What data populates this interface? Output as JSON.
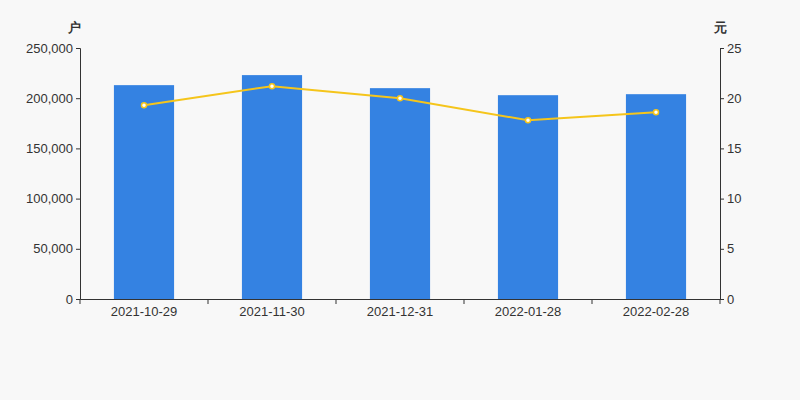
{
  "chart_data": {
    "type": "bar",
    "ylabel": "户",
    "y2label": "元",
    "categories": [
      "2021-10-29",
      "2021-11-30",
      "2021-12-31",
      "2022-01-28",
      "2022-02-28"
    ],
    "series": [
      {
        "type": "bar",
        "color": "#3482e2",
        "values": [
          213000,
          223000,
          210000,
          203000,
          204000
        ]
      },
      {
        "type": "line",
        "color": "#f5c51b",
        "marker": "circle",
        "axis": "y2",
        "values": [
          19.3,
          21.2,
          20.0,
          17.8,
          18.6
        ]
      }
    ],
    "ylim": [
      0,
      250000
    ],
    "yticks": [
      0,
      {
        "value": 50000,
        "label": "50,000"
      },
      {
        "value": 100000,
        "label": "100,000"
      },
      {
        "value": 150000,
        "label": "150,000"
      },
      {
        "value": 200000,
        "label": "200,000"
      },
      {
        "value": 250000,
        "label": "250,000"
      }
    ],
    "y2lim": [
      0,
      25
    ],
    "y2ticks": [
      0,
      5,
      10,
      15,
      20,
      25
    ],
    "grid": false
  }
}
